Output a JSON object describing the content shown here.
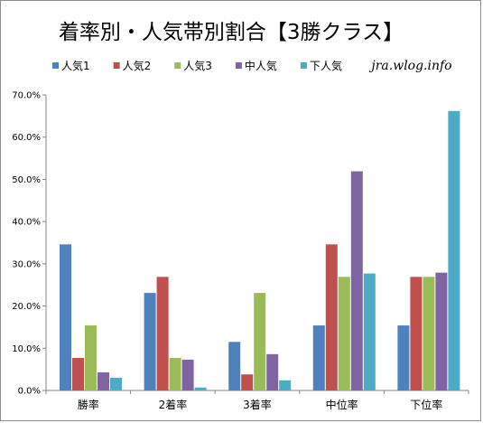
{
  "chart_data": {
    "type": "bar",
    "title": "着率別・人気帯別割合【3勝クラス】",
    "watermark": "jra.wlog.info",
    "categories": [
      "勝率",
      "2着率",
      "3着率",
      "中位率",
      "下位率"
    ],
    "series": [
      {
        "name": "人気1",
        "color": "#4f81bd",
        "values": [
          34.6,
          23.1,
          11.5,
          15.4,
          15.4
        ]
      },
      {
        "name": "人気2",
        "color": "#c0504d",
        "values": [
          7.7,
          26.9,
          3.8,
          34.6,
          26.9
        ]
      },
      {
        "name": "人気3",
        "color": "#9bbb59",
        "values": [
          15.4,
          7.7,
          23.1,
          26.9,
          26.9
        ]
      },
      {
        "name": "中人気",
        "color": "#8064a2",
        "values": [
          4.3,
          7.3,
          8.6,
          51.9,
          27.9
        ]
      },
      {
        "name": "下人気",
        "color": "#4bacc6",
        "values": [
          3.0,
          0.7,
          2.4,
          27.7,
          66.2
        ]
      }
    ],
    "xlabel": "",
    "ylabel": "",
    "ylim": [
      0,
      70
    ],
    "yticks": [
      "0.0%",
      "10.0%",
      "20.0%",
      "30.0%",
      "40.0%",
      "50.0%",
      "60.0%",
      "70.0%"
    ],
    "grid": false,
    "legend_position": "top-left"
  }
}
